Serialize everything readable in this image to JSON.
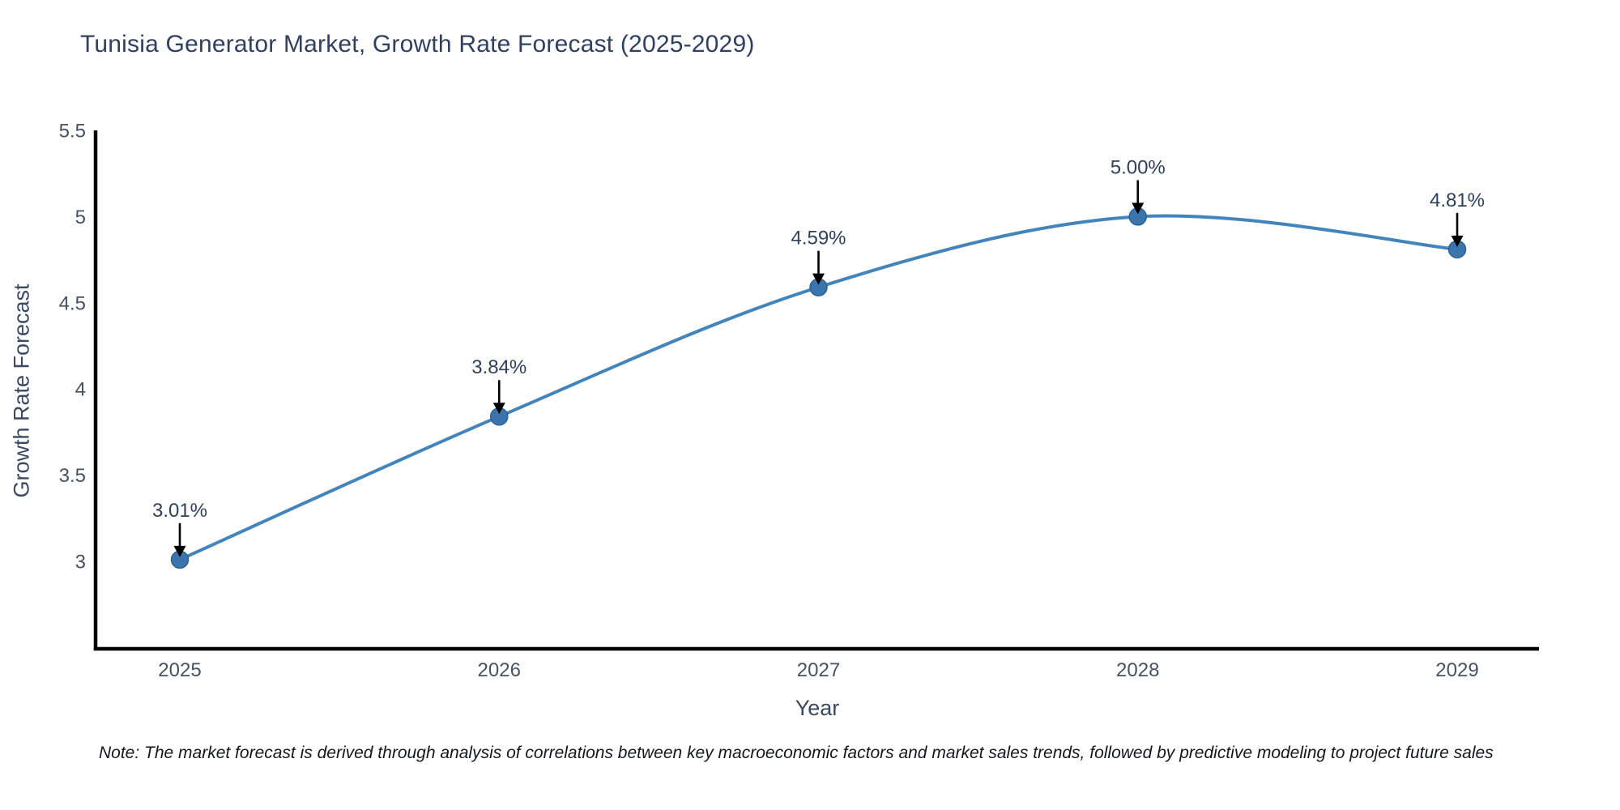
{
  "chart_data": {
    "type": "line",
    "title": "Tunisia Generator Market, Growth Rate Forecast (2025-2029)",
    "xlabel": "Year",
    "ylabel": "Growth Rate Forecast",
    "categories": [
      "2025",
      "2026",
      "2027",
      "2028",
      "2029"
    ],
    "x": [
      2025,
      2026,
      2027,
      2028,
      2029
    ],
    "series": [
      {
        "name": "Growth Rate Forecast",
        "values": [
          3.01,
          3.84,
          4.59,
          5.0,
          4.81
        ]
      }
    ],
    "point_labels": [
      "3.01%",
      "3.84%",
      "4.59%",
      "5.00%",
      "4.81%"
    ],
    "yticks": [
      3,
      3.5,
      4,
      4.5,
      5,
      5.5
    ],
    "ytick_labels": [
      "3",
      "3.5",
      "4",
      "4.5",
      "5",
      "5.5"
    ],
    "ylim": [
      2.49,
      5.5
    ],
    "grid": false,
    "legend": "none",
    "line_style": "spline",
    "annotations": "black down-arrows from each value label to its data point",
    "colors": {
      "line": "#4384bb",
      "marker_fill": "#3a76ad",
      "marker_edge": "#2c6195",
      "axis_line": "#000000",
      "title_text": "#31405f",
      "axis_title_text": "#3c4961",
      "tick_text": "#47526388",
      "annotation_text": "#2f3f5c",
      "arrow": "#000000"
    }
  },
  "footnote": {
    "text": "Note: The market forecast is derived through analysis of correlations between key macroeconomic factors and market sales trends, followed by predictive modeling to project future sales"
  }
}
